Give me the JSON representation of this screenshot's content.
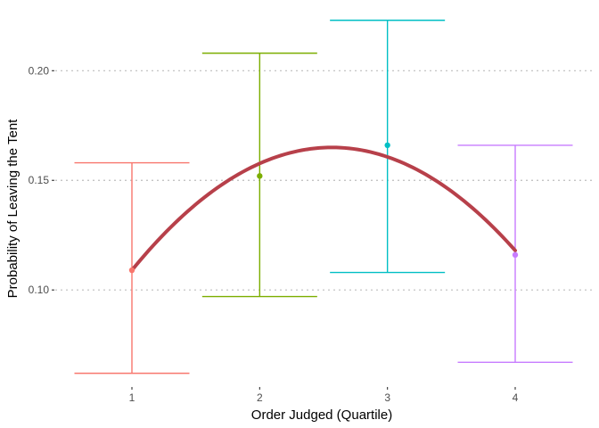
{
  "chart_data": {
    "type": "scatter",
    "title": "",
    "xlabel": "Order Judged (Quartile)",
    "ylabel": "Probability of Leaving the Tent",
    "categories": [
      "1",
      "2",
      "3",
      "4"
    ],
    "y_ticks": [
      0.1,
      0.15,
      0.2
    ],
    "y_tick_labels": [
      "0.10",
      "0.15",
      "0.20"
    ],
    "ylim": [
      0.059,
      0.229
    ],
    "grid": "horizontal dotted",
    "legend": "none",
    "points": [
      {
        "x": 1,
        "y": 0.109,
        "ymin": 0.062,
        "ymax": 0.158,
        "color": "#F8766D"
      },
      {
        "x": 2,
        "y": 0.152,
        "ymin": 0.097,
        "ymax": 0.208,
        "color": "#7CAE00"
      },
      {
        "x": 3,
        "y": 0.166,
        "ymin": 0.108,
        "ymax": 0.223,
        "color": "#00BFC4"
      },
      {
        "x": 4,
        "y": 0.116,
        "ymin": 0.067,
        "ymax": 0.166,
        "color": "#C77CFF"
      }
    ],
    "fit_curve": {
      "type": "quadratic",
      "x_range": [
        1,
        4
      ],
      "points": [
        [
          1,
          0.109
        ],
        [
          2.57,
          0.165
        ],
        [
          4,
          0.118
        ]
      ],
      "color": "#B7404A"
    }
  }
}
